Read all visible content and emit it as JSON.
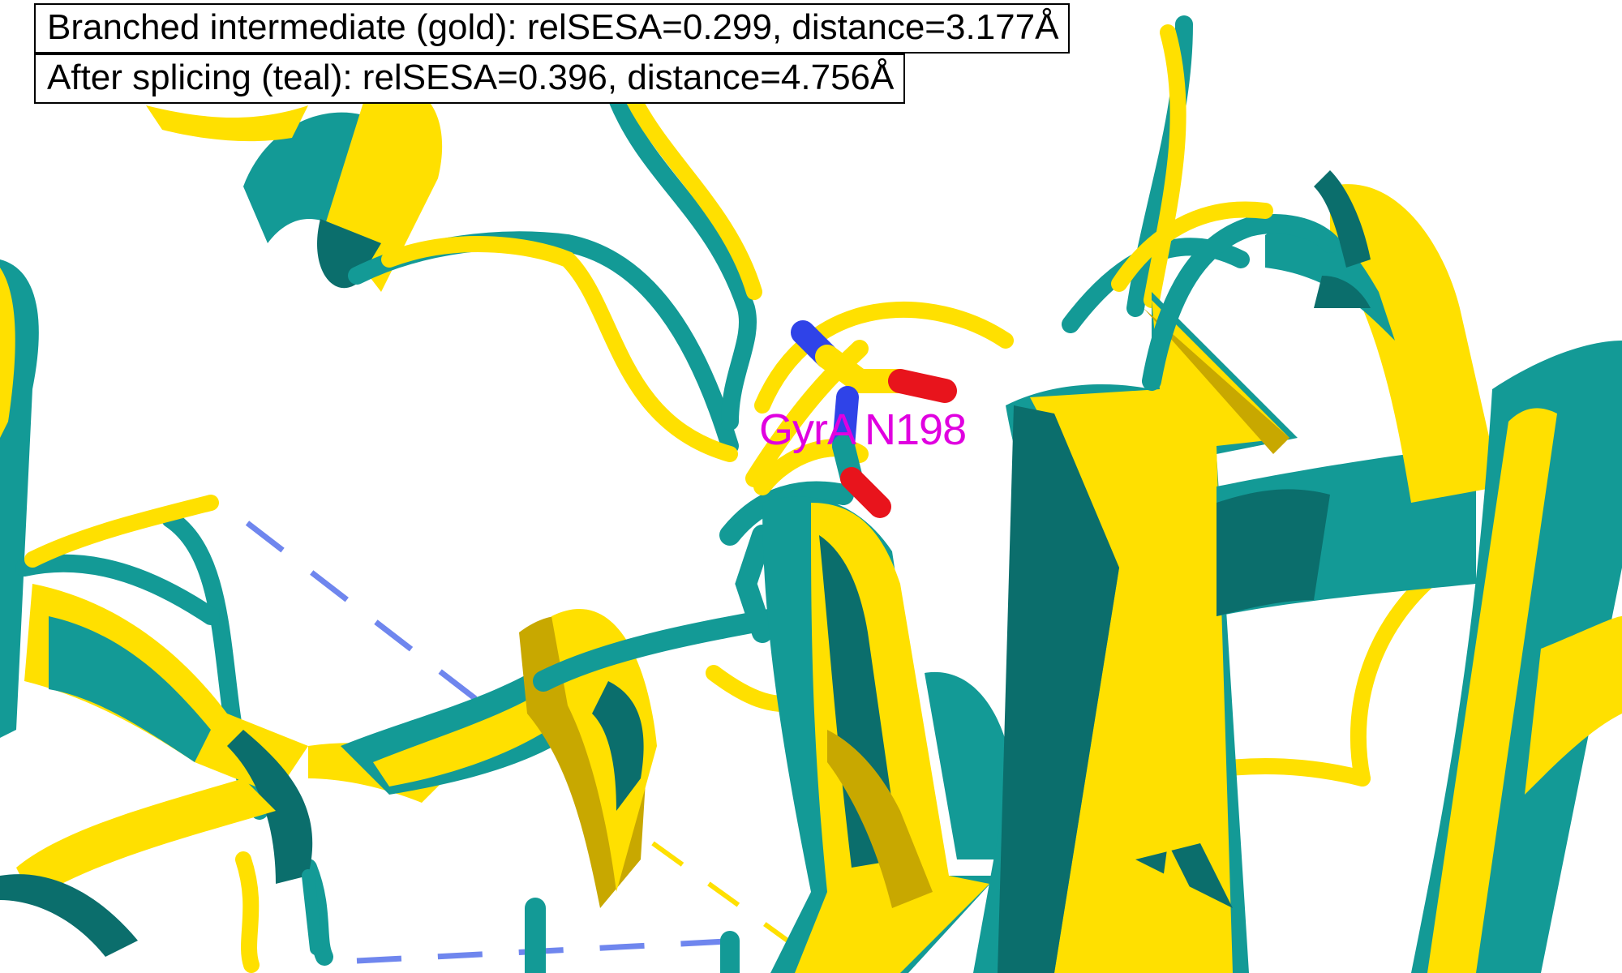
{
  "annotations": {
    "line1": "Branched intermediate (gold): relSESA=0.299, distance=3.177Å",
    "line2": "After splicing (teal): relSESA=0.396, distance=4.756Å"
  },
  "residue_label": {
    "text": "GyrA N198",
    "color": "#e000e0"
  },
  "colors": {
    "gold": "#ffe000",
    "gold_shade": "#c8a800",
    "teal": "#139a96",
    "teal_shade": "#0b6e6c",
    "dash_blue": "#6f86ee",
    "nitrogen": "#2f43e8",
    "oxygen": "#e8141c"
  }
}
